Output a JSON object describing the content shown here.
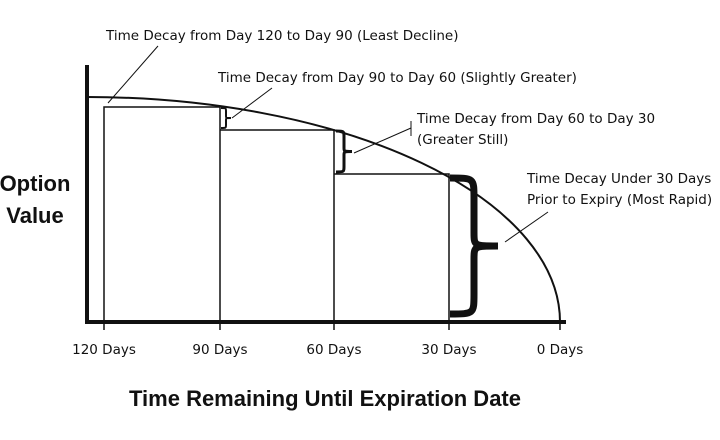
{
  "annotations": {
    "decay_120_90": [
      "Time Decay from Day 120 to Day 90 (Least Decline)"
    ],
    "decay_90_60": [
      "Time Decay from Day 90 to Day 60 (Slightly Greater)"
    ],
    "decay_60_30": [
      "Time Decay from Day 60 to Day 30",
      "(Greater Still)"
    ],
    "decay_under_30": [
      "Time Decay Under 30 Days",
      "Prior to Expiry (Most Rapid)"
    ]
  },
  "y_axis_label": [
    "Option",
    "Value"
  ],
  "x_axis_label": "Time Remaining Until Expiration Date",
  "x_ticks": [
    "120 Days",
    "90 Days",
    "60 Days",
    "30 Days",
    "0 Days"
  ]
}
